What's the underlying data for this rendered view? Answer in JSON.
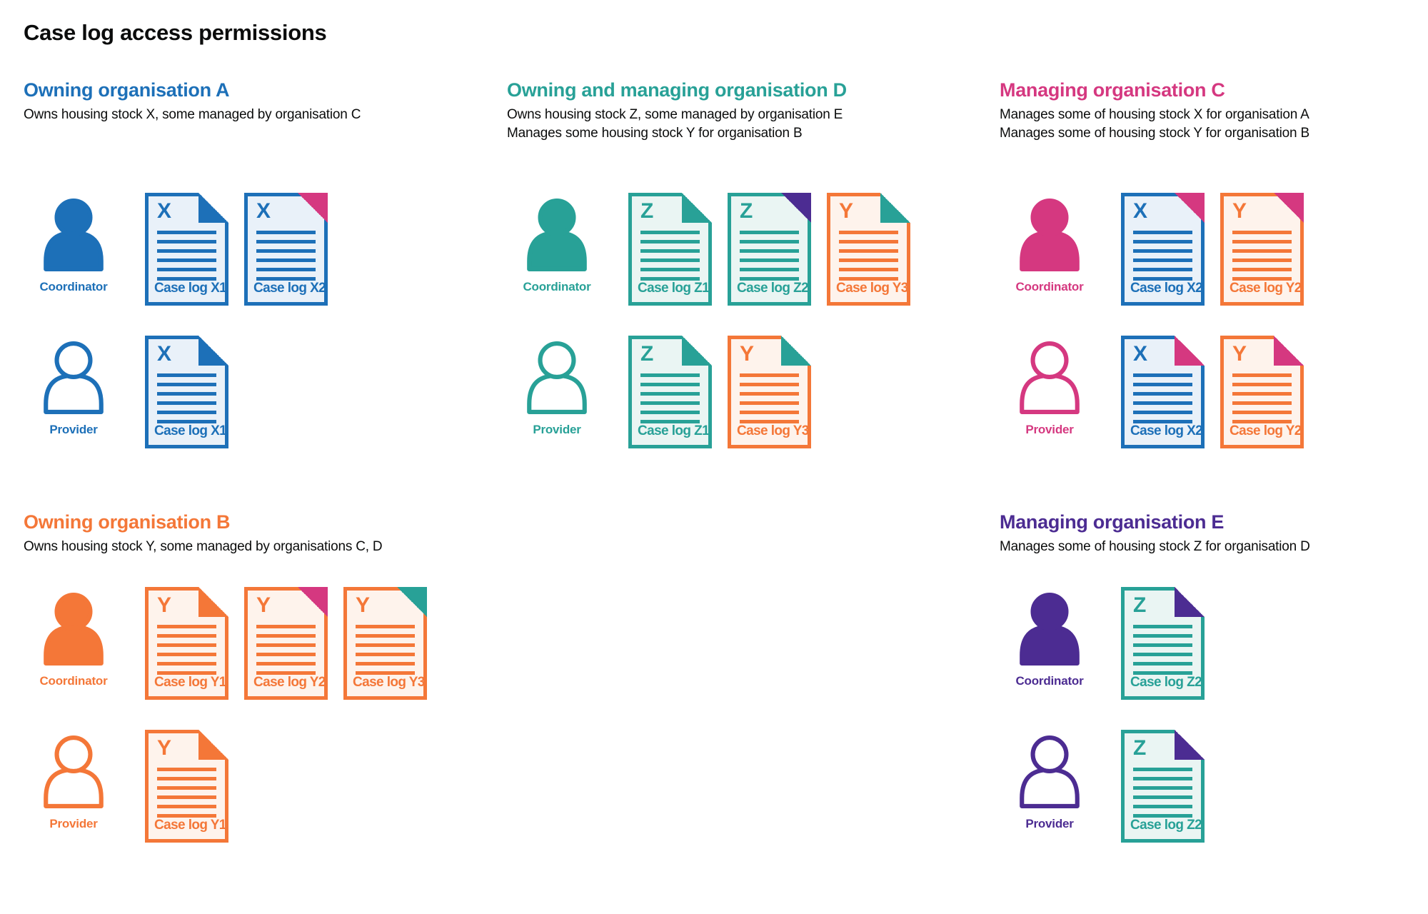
{
  "title": "Case log access permissions",
  "colors": {
    "blue": "#1d70b8",
    "teal": "#28a197",
    "pink": "#d53880",
    "orange": "#f47738",
    "purple": "#4c2c92",
    "text": "#0b0c0c",
    "white": "#ffffff"
  },
  "doc_backgrounds": {
    "blue": "#e9f1f9",
    "teal": "#eaf5f3",
    "orange": "#fef3ec"
  },
  "sections": [
    {
      "heading": "Owning organisation A",
      "color": "blue",
      "description": [
        "Owns housing stock X, some managed by organisation C"
      ],
      "rows": [
        {
          "role": "Coordinator",
          "person": "filled",
          "docs": [
            {
              "letter": "X",
              "label": "Case log X1",
              "color": "blue",
              "fold_color": "blue",
              "fold_style": "flap"
            },
            {
              "letter": "X",
              "label": "Case log X2",
              "color": "blue",
              "fold_color": "pink",
              "fold_style": "solid"
            }
          ]
        },
        {
          "role": "Provider",
          "person": "outline",
          "docs": [
            {
              "letter": "X",
              "label": "Case log X1",
              "color": "blue",
              "fold_color": "blue",
              "fold_style": "flap"
            }
          ]
        }
      ]
    },
    {
      "heading": "Owning and managing organisation D",
      "color": "teal",
      "description": [
        "Owns housing stock Z, some managed by organisation E",
        "Manages some housing stock Y for organisation B"
      ],
      "rows": [
        {
          "role": "Coordinator",
          "person": "filled",
          "docs": [
            {
              "letter": "Z",
              "label": "Case log Z1",
              "color": "teal",
              "fold_color": "teal",
              "fold_style": "flap"
            },
            {
              "letter": "Z",
              "label": "Case log Z2",
              "color": "teal",
              "fold_color": "purple",
              "fold_style": "solid"
            },
            {
              "letter": "Y",
              "label": "Case log Y3",
              "color": "orange",
              "fold_color": "teal",
              "fold_style": "flap"
            }
          ]
        },
        {
          "role": "Provider",
          "person": "outline",
          "docs": [
            {
              "letter": "Z",
              "label": "Case log Z1",
              "color": "teal",
              "fold_color": "teal",
              "fold_style": "flap"
            },
            {
              "letter": "Y",
              "label": "Case log Y3",
              "color": "orange",
              "fold_color": "teal",
              "fold_style": "flap"
            }
          ]
        }
      ]
    },
    {
      "heading": "Managing organisation C",
      "color": "pink",
      "description": [
        "Manages some of housing stock X for organisation A",
        "Manages some of housing stock Y for organisation B"
      ],
      "rows": [
        {
          "role": "Coordinator",
          "person": "filled",
          "docs": [
            {
              "letter": "X",
              "label": "Case log X2",
              "color": "blue",
              "fold_color": "pink",
              "fold_style": "solid"
            },
            {
              "letter": "Y",
              "label": "Case log Y2",
              "color": "orange",
              "fold_color": "pink",
              "fold_style": "solid"
            }
          ]
        },
        {
          "role": "Provider",
          "person": "outline",
          "docs": [
            {
              "letter": "X",
              "label": "Case log X2",
              "color": "blue",
              "fold_color": "pink",
              "fold_style": "flap"
            },
            {
              "letter": "Y",
              "label": "Case log Y2",
              "color": "orange",
              "fold_color": "pink",
              "fold_style": "flap"
            }
          ]
        }
      ]
    },
    {
      "heading": "Owning organisation B",
      "color": "orange",
      "description": [
        "Owns housing stock Y, some managed by organisations C, D"
      ],
      "rows": [
        {
          "role": "Coordinator",
          "person": "filled",
          "docs": [
            {
              "letter": "Y",
              "label": "Case log Y1",
              "color": "orange",
              "fold_color": "orange",
              "fold_style": "flap"
            },
            {
              "letter": "Y",
              "label": "Case log Y2",
              "color": "orange",
              "fold_color": "pink",
              "fold_style": "solid"
            },
            {
              "letter": "Y",
              "label": "Case log Y3",
              "color": "orange",
              "fold_color": "teal",
              "fold_style": "solid"
            }
          ]
        },
        {
          "role": "Provider",
          "person": "outline",
          "docs": [
            {
              "letter": "Y",
              "label": "Case log Y1",
              "color": "orange",
              "fold_color": "orange",
              "fold_style": "flap"
            }
          ]
        }
      ]
    },
    {
      "heading": "Managing organisation E",
      "color": "purple",
      "description": [
        "Manages some of housing stock Z for organisation D"
      ],
      "rows": [
        {
          "role": "Coordinator",
          "person": "filled",
          "docs": [
            {
              "letter": "Z",
              "label": "Case log Z2",
              "color": "teal",
              "fold_color": "purple",
              "fold_style": "flap"
            }
          ]
        },
        {
          "role": "Provider",
          "person": "outline",
          "docs": [
            {
              "letter": "Z",
              "label": "Case log Z2",
              "color": "teal",
              "fold_color": "purple",
              "fold_style": "flap"
            }
          ]
        }
      ]
    }
  ]
}
